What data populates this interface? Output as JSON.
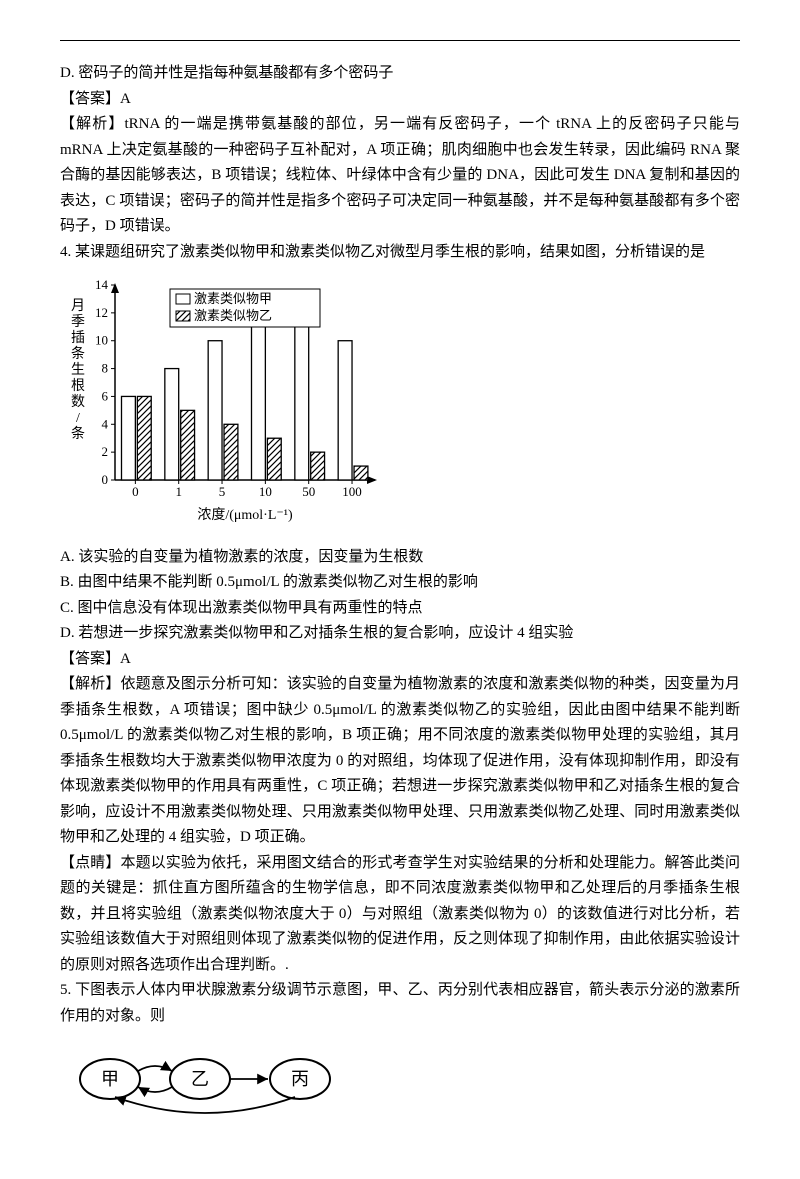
{
  "q3": {
    "optionD": "D. 密码子的简并性是指每种氨基酸都有多个密码子",
    "answerLabel": "【答案】A",
    "explainLabel": "【解析】",
    "explainText": "tRNA 的一端是携带氨基酸的部位，另一端有反密码子，一个 tRNA 上的反密码子只能与 mRNA 上决定氨基酸的一种密码子互补配对，A 项正确；肌肉细胞中也会发生转录，因此编码 RNA 聚合酶的基因能够表达，B 项错误；线粒体、叶绿体中含有少量的 DNA，因此可发生 DNA 复制和基因的表达，C 项错误；密码子的简并性是指多个密码子可决定同一种氨基酸，并不是每种氨基酸都有多个密码子，D 项错误。"
  },
  "q4": {
    "stem": "4. 某课题组研究了激素类似物甲和激素类似物乙对微型月季生根的影响，结果如图，分析错误的是",
    "chart": {
      "yLabel": "月季插条生根数/条",
      "xLabel": "浓度/(μmol·L⁻¹)",
      "legendA": "激素类似物甲",
      "legendB": "激素类似物乙",
      "yMax": 14,
      "yTicks": [
        0,
        2,
        4,
        6,
        8,
        10,
        12,
        14
      ],
      "categories": [
        "0",
        "1",
        "5",
        "10",
        "50",
        "100"
      ],
      "seriesA": [
        6,
        8,
        10,
        12,
        12,
        10
      ],
      "seriesB": [
        6,
        5,
        4,
        3,
        2,
        1
      ],
      "colorA": "#ffffff",
      "colorB_pattern": true,
      "stroke": "#000000",
      "axisFontSize": 13,
      "labelFontSize": 14
    },
    "optA": "A. 该实验的自变量为植物激素的浓度，因变量为生根数",
    "optB": "B. 由图中结果不能判断 0.5μmol/L 的激素类似物乙对生根的影响",
    "optC": "C. 图中信息没有体现出激素类似物甲具有两重性的特点",
    "optD": "D. 若想进一步探究激素类似物甲和乙对插条生根的复合影响，应设计 4 组实验",
    "answerLabel": "【答案】A",
    "explainLabel": "【解析】",
    "explainText": "依题意及图示分析可知：该实验的自变量为植物激素的浓度和激素类似物的种类，因变量为月季插条生根数，A 项错误；图中缺少 0.5μmol/L 的激素类似物乙的实验组，因此由图中结果不能判断 0.5μmol/L 的激素类似物乙对生根的影响，B 项正确；用不同浓度的激素类似物甲处理的实验组，其月季插条生根数均大于激素类似物甲浓度为 0 的对照组，均体现了促进作用，没有体现抑制作用，即没有体现激素类似物甲的作用具有两重性，C 项正确；若想进一步探究激素类似物甲和乙对插条生根的复合影响，应设计不用激素类似物处理、只用激素类似物甲处理、只用激素类似物乙处理、同时用激素类似物甲和乙处理的 4 组实验，D 项正确。",
    "tipsLabel": "【点睛】",
    "tipsText": "本题以实验为依托，采用图文结合的形式考查学生对实验结果的分析和处理能力。解答此类问题的关键是：抓住直方图所蕴含的生物学信息，即不同浓度激素类似物甲和乙处理后的月季插条生根数，并且将实验组（激素类似物浓度大于 0）与对照组（激素类似物为 0）的该数值进行对比分析，若实验组该数值大于对照组则体现了激素类似物的促进作用，反之则体现了抑制作用，由此依据实验设计的原则对照各选项作出合理判断。."
  },
  "q5": {
    "stem": "5. 下图表示人体内甲状腺激素分级调节示意图，甲、乙、丙分别代表相应器官，箭头表示分泌的激素所作用的对象。则",
    "diagram": {
      "nodeA": "甲",
      "nodeB": "乙",
      "nodeC": "丙",
      "stroke": "#000000",
      "fill": "#ffffff",
      "fontSize": 18
    }
  }
}
